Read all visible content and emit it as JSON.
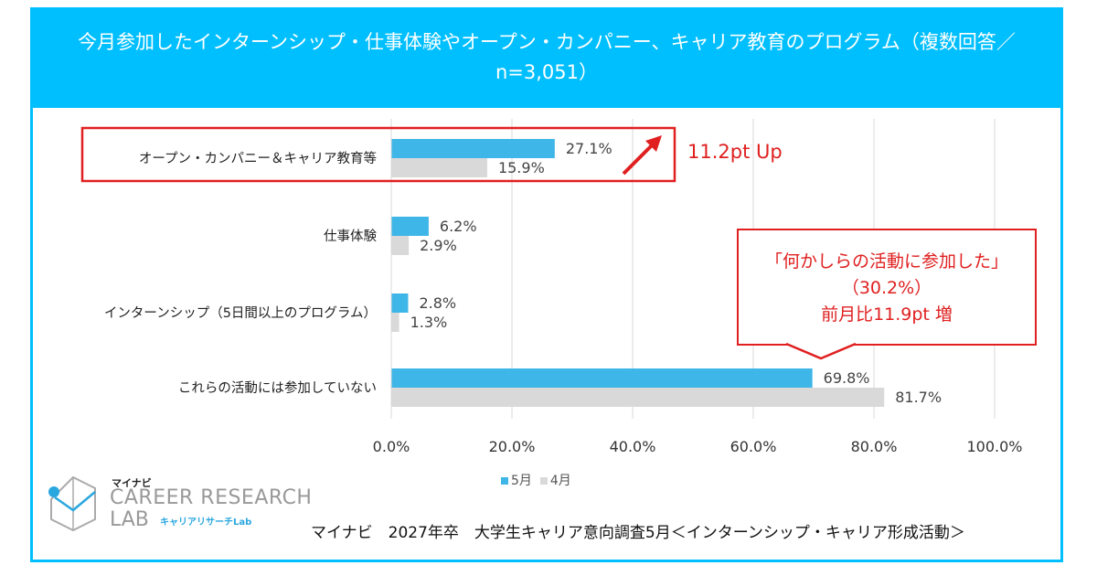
{
  "title": "今月参加したインターンシップ・仕事体験やオープン・カンパニー、キャリア教育のプログラム（複数回答／n=3,051）",
  "chart_data": {
    "type": "bar",
    "orientation": "horizontal",
    "title": "今月参加したインターンシップ・仕事体験やオープン・カンパニー、キャリア教育のプログラム（複数回答／n=3,051）",
    "categories": [
      "オープン・カンパニー＆キャリア教育等",
      "仕事体験",
      "インターンシップ（5日間以上のプログラム）",
      "これらの活動には参加していない"
    ],
    "series": [
      {
        "name": "5月",
        "values": [
          27.1,
          6.2,
          2.8,
          69.8
        ],
        "labels": [
          "27.1%",
          "6.2%",
          "2.8%",
          "69.8%"
        ],
        "color": "#3fb6e8"
      },
      {
        "name": "4月",
        "values": [
          15.9,
          2.9,
          1.3,
          81.7
        ],
        "labels": [
          "15.9%",
          "2.9%",
          "1.3%",
          "81.7%"
        ],
        "color": "#d9d9d9"
      }
    ],
    "xlim": [
      0,
      100
    ],
    "xticks": [
      "0.0%",
      "20.0%",
      "40.0%",
      "60.0%",
      "80.0%",
      "100.0%"
    ],
    "grid": true,
    "legend": "bottom"
  },
  "annotations": {
    "up": "11.2pt Up",
    "callout": [
      "「何かしらの活動に参加した」",
      "（30.2%）",
      "前月比11.9pt 増"
    ]
  },
  "logo": {
    "brand": "マイナビ",
    "line1": "CAREER RESEARCH",
    "line2": "LAB",
    "sub": "キャリアリサーチLab"
  },
  "source": "マイナビ　2027年卒　大学生キャリア意向調査5月＜インターンシップ・キャリア形成活動＞"
}
